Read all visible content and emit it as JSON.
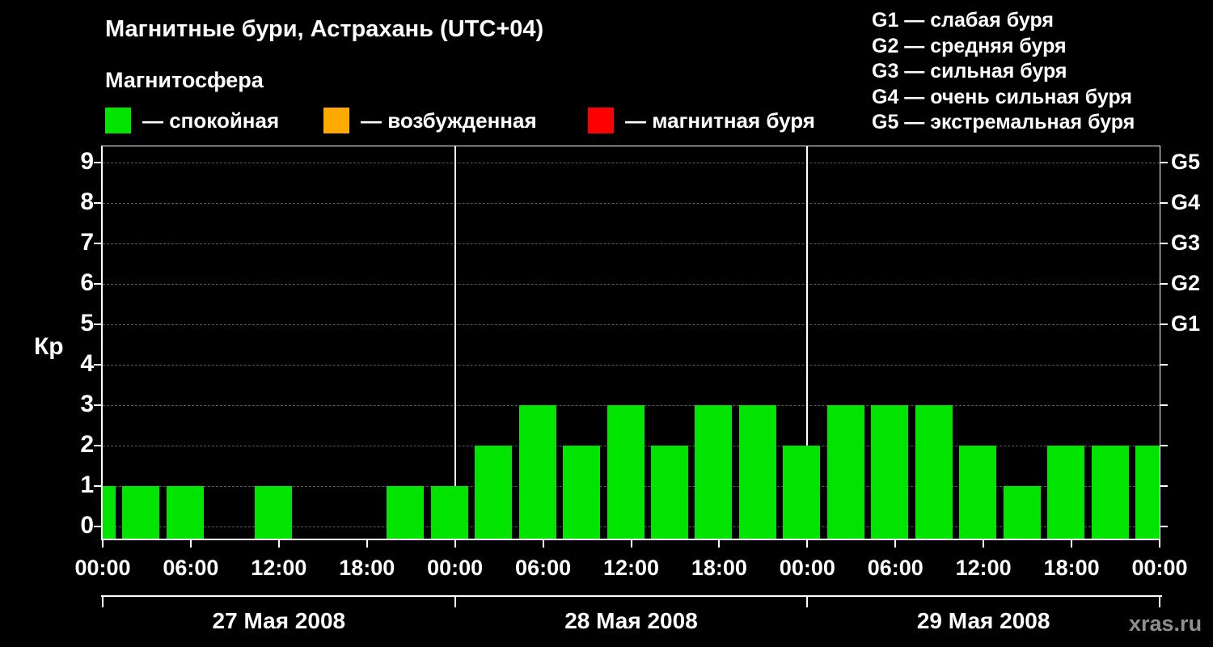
{
  "title": "Магнитные бури, Астрахань (UTC+04)",
  "subtitle": "Магнитосфера",
  "legend": {
    "items": [
      {
        "name": "quiet",
        "label": "— спокойная",
        "color": "#00e400"
      },
      {
        "name": "active",
        "label": "— возбужденная",
        "color": "#ffaa00"
      },
      {
        "name": "storm",
        "label": "— магнитная буря",
        "color": "#ff0000"
      }
    ]
  },
  "storm_scale": {
    "items": [
      "G1 — слабая буря",
      "G2 — средняя буря",
      "G3 — сильная буря",
      "G4 — очень сильная буря",
      "G5 — экстремальная буря"
    ]
  },
  "watermark": "xras.ru",
  "chart_data": {
    "type": "bar",
    "title": "Магнитные бури, Астрахань (UTC+04)",
    "ylabel": "Кр",
    "ylim": [
      0,
      9
    ],
    "grid": true,
    "legend_position": "top",
    "bar_color": "#00e400",
    "x_hours": [
      0,
      3,
      6,
      9,
      12,
      15,
      18,
      21,
      24,
      27,
      30,
      33,
      36,
      39,
      42,
      45,
      48,
      51,
      54,
      57,
      60,
      63,
      66,
      69,
      72
    ],
    "values": [
      1,
      1,
      1,
      0,
      1,
      0,
      0,
      1,
      1,
      2,
      3,
      2,
      3,
      2,
      3,
      3,
      2,
      3,
      3,
      3,
      2,
      1,
      2,
      2,
      2
    ],
    "x_total_hours": 72,
    "x_tick_hours": [
      0,
      6,
      12,
      18,
      24,
      30,
      36,
      42,
      48,
      54,
      60,
      66,
      72
    ],
    "x_tick_labels": [
      "00:00",
      "06:00",
      "12:00",
      "18:00",
      "00:00",
      "06:00",
      "12:00",
      "18:00",
      "00:00",
      "06:00",
      "12:00",
      "18:00",
      "00:00"
    ],
    "y_tick_values": [
      9,
      8,
      7,
      6,
      5,
      4,
      3,
      2,
      1,
      0
    ],
    "right_axis_labels": [
      {
        "label": "G5",
        "kp": 9
      },
      {
        "label": "G4",
        "kp": 8
      },
      {
        "label": "G3",
        "kp": 7
      },
      {
        "label": "G2",
        "kp": 6
      },
      {
        "label": "G1",
        "kp": 5
      }
    ],
    "day_boundaries_hours": [
      24,
      48
    ],
    "dates": [
      "27 Мая 2008",
      "28 Мая 2008",
      "29 Мая 2008"
    ]
  }
}
